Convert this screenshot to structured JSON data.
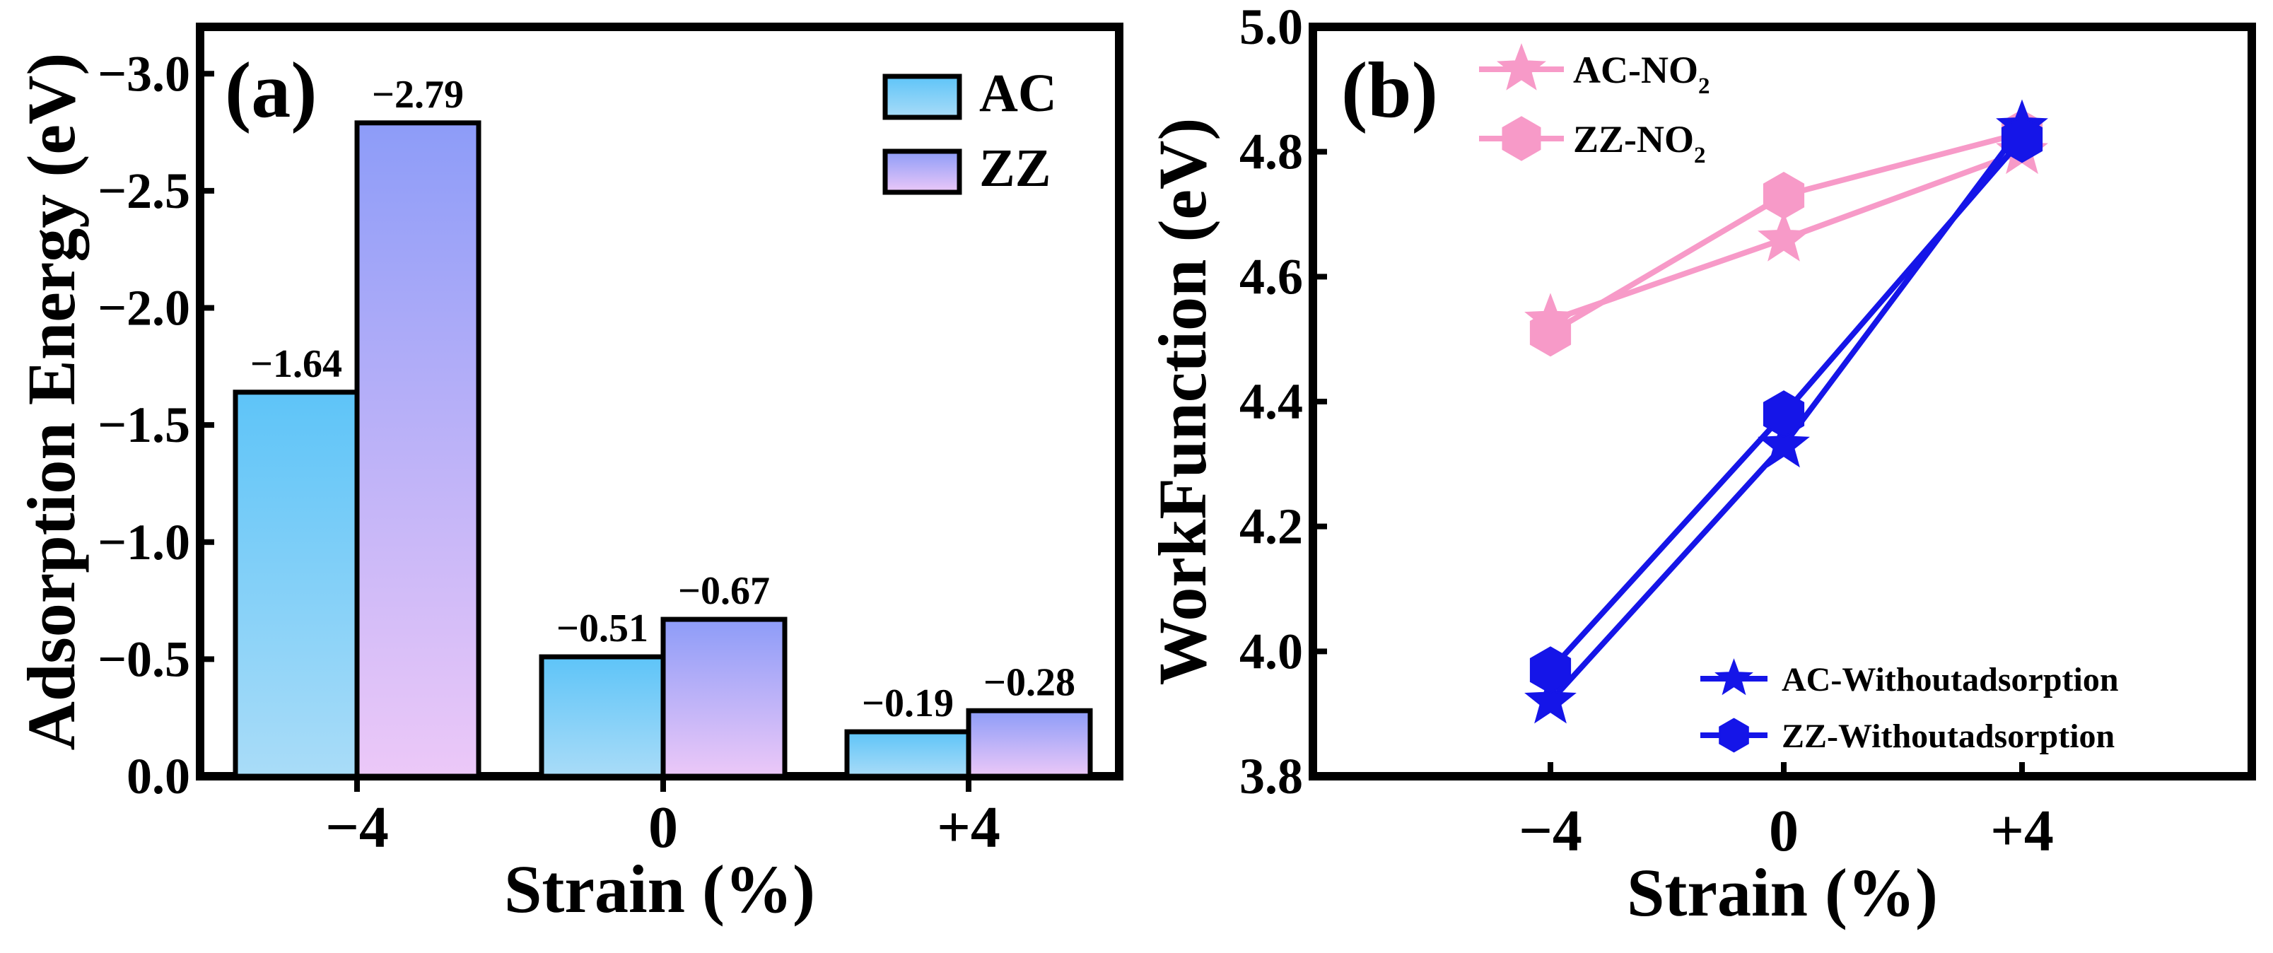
{
  "chart_data": [
    {
      "type": "bar",
      "panel_label": "(a)",
      "title": "",
      "xlabel": "Strain (%)",
      "ylabel": "Adsorption Energy (eV)",
      "categories": [
        "−4",
        "0",
        "+4"
      ],
      "ylim": [
        0,
        -3.2
      ],
      "yticks": [
        "0.0",
        "−0.5",
        "−1.0",
        "−1.5",
        "−2.0",
        "−2.5",
        "−3.0"
      ],
      "ytick_values": [
        0,
        -0.5,
        -1.0,
        -1.5,
        -2.0,
        -2.5,
        -3.0
      ],
      "series": [
        {
          "name": "AC",
          "values": [
            -1.64,
            -0.51,
            -0.19
          ],
          "labels": [
            "−1.64",
            "−0.51",
            "−0.19"
          ],
          "color_top": "#5ec4f8",
          "color_bottom": "#a9dcf8"
        },
        {
          "name": "ZZ",
          "values": [
            -2.79,
            -0.67,
            -0.28
          ],
          "labels": [
            "−2.79",
            "−0.67",
            "−0.28"
          ],
          "color_top": "#8d9cf8",
          "color_bottom": "#ecc8f8"
        }
      ],
      "legend_position": "top-right"
    },
    {
      "type": "line",
      "panel_label": "(b)",
      "title": "",
      "xlabel": "Strain (%)",
      "ylabel": "WorkFunction (eV)",
      "categories": [
        "−4",
        "0",
        "+4"
      ],
      "x": [
        -4,
        0,
        4
      ],
      "ylim": [
        3.8,
        5.0
      ],
      "yticks": [
        "3.8",
        "4.0",
        "4.2",
        "4.4",
        "4.6",
        "4.8",
        "5.0"
      ],
      "ytick_values": [
        3.8,
        4.0,
        4.2,
        4.4,
        4.6,
        4.8,
        5.0
      ],
      "series": [
        {
          "name": "AC-NO",
          "sub": "2",
          "marker": "star",
          "color": "#f79ac8",
          "values": [
            4.53,
            4.66,
            4.8
          ]
        },
        {
          "name": "ZZ-NO",
          "sub": "2",
          "marker": "hexagon",
          "color": "#f79ac8",
          "values": [
            4.51,
            4.73,
            4.83
          ]
        },
        {
          "name": "AC-Withoutadsorption",
          "sub": "",
          "marker": "star",
          "color": "#1515e8",
          "values": [
            3.92,
            4.33,
            4.84
          ]
        },
        {
          "name": "ZZ-Withoutadsorption",
          "sub": "",
          "marker": "hexagon",
          "color": "#1515e8",
          "values": [
            3.97,
            4.38,
            4.82
          ]
        }
      ],
      "legend_position": "top-left and bottom-right"
    }
  ]
}
